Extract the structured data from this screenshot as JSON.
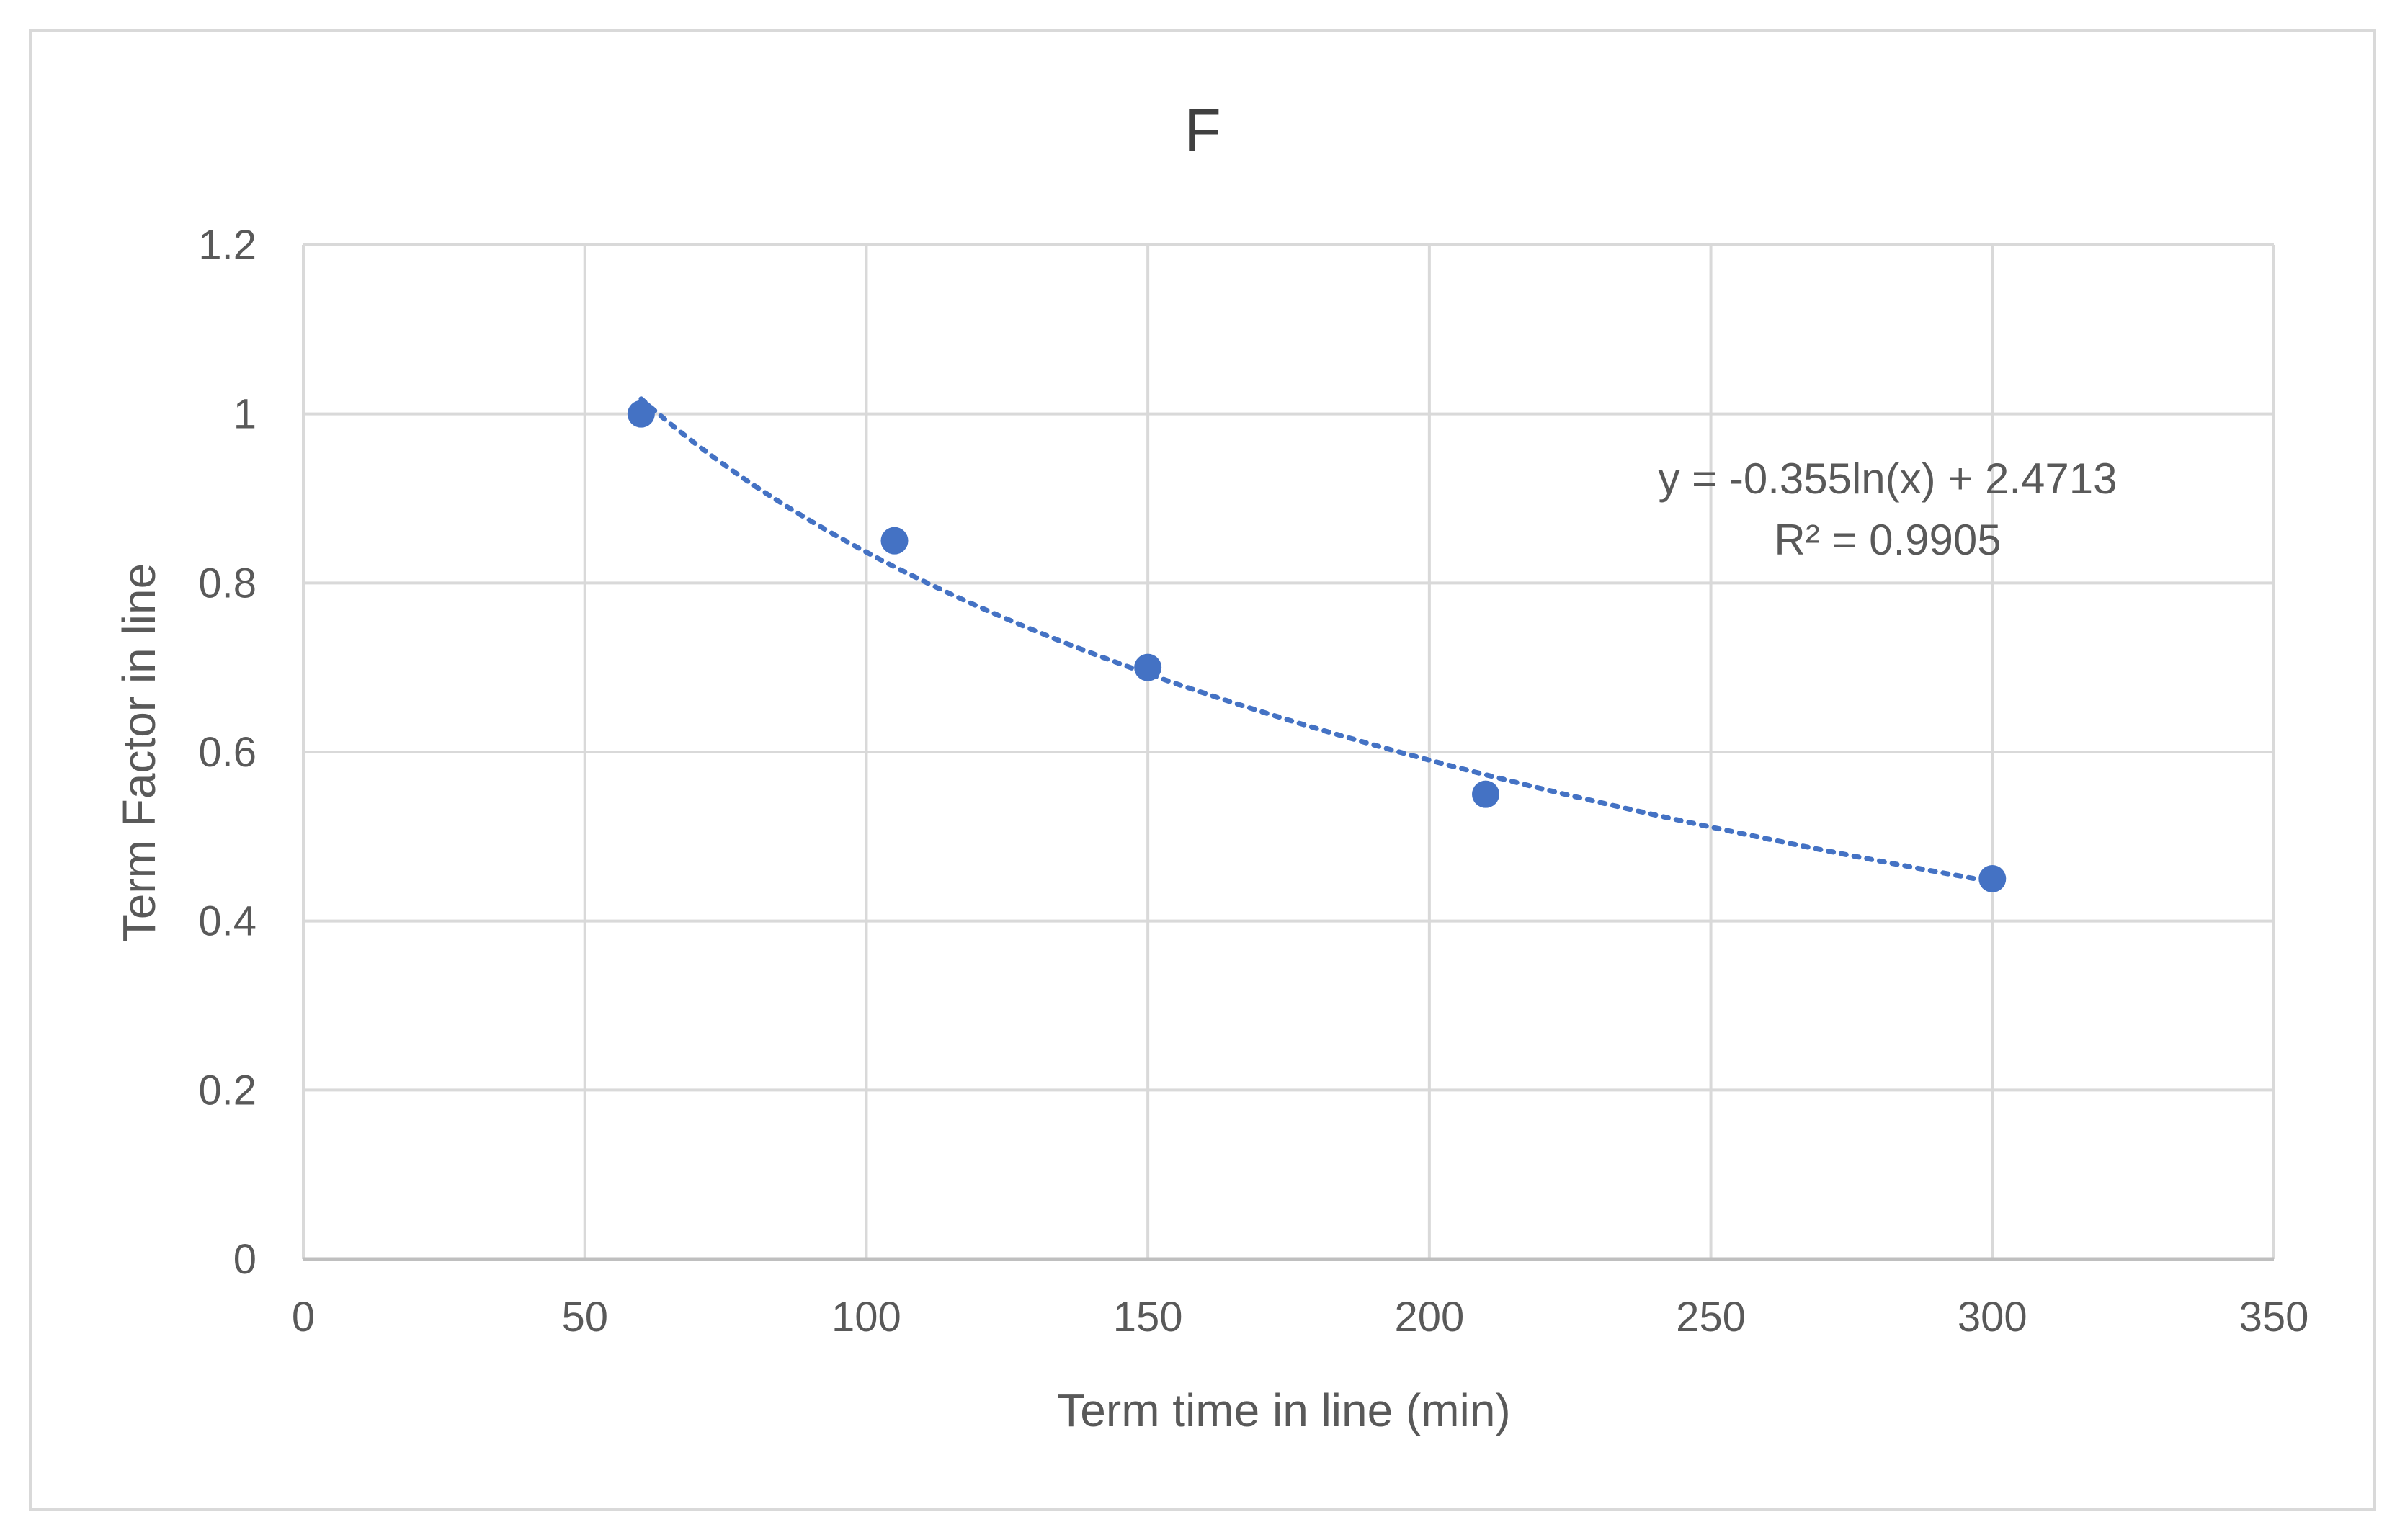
{
  "chart_data": {
    "type": "scatter",
    "title": "F",
    "xlabel": "Term time in line (min)",
    "ylabel": "Term Factor in line",
    "xlim": [
      0,
      350
    ],
    "ylim": [
      0,
      1.2
    ],
    "x_ticks": [
      0,
      50,
      100,
      150,
      200,
      250,
      300,
      350
    ],
    "y_ticks": [
      0,
      0.2,
      0.4,
      0.6,
      0.8,
      1,
      1.2
    ],
    "grid": true,
    "series": [
      {
        "name": "Term Factor",
        "color": "#4472C4",
        "points": [
          {
            "x": 60,
            "y": 1.0
          },
          {
            "x": 105,
            "y": 0.85
          },
          {
            "x": 150,
            "y": 0.7
          },
          {
            "x": 210,
            "y": 0.55
          },
          {
            "x": 300,
            "y": 0.45
          }
        ]
      }
    ],
    "trendline": {
      "type": "logarithmic",
      "a": -0.355,
      "b": 2.4713,
      "x_range": [
        60,
        300
      ],
      "color": "#4472C4",
      "equation": "y = -0.355ln(x) + 2.4713",
      "r_squared": "R² = 0.9905"
    }
  }
}
